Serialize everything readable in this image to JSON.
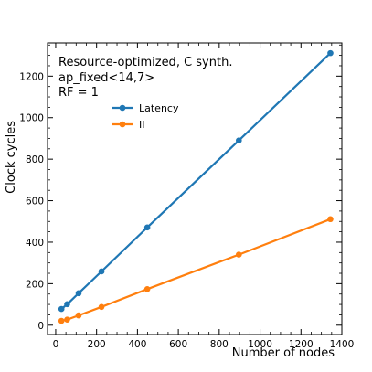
{
  "chart_data": {
    "type": "line",
    "x": [
      28,
      56,
      112,
      224,
      448,
      896,
      1344
    ],
    "series": [
      {
        "name": "Latency",
        "color": "#1f77b4",
        "values": [
          78,
          101,
          154,
          259,
          471,
          890,
          1311
        ]
      },
      {
        "name": "II",
        "color": "#ff7f0e",
        "values": [
          21,
          27,
          47,
          88,
          174,
          340,
          511
        ]
      }
    ],
    "xlabel": "Number of nodes",
    "ylabel": "Clock cycles",
    "xlim": [
      -40,
      1400
    ],
    "ylim": [
      -45,
      1360
    ],
    "xticks": [
      0,
      200,
      400,
      600,
      800,
      1000,
      1200,
      1400
    ],
    "yticks": [
      0,
      200,
      400,
      600,
      800,
      1000,
      1200
    ],
    "annotations": [
      "Resource-optimized, C synth.",
      "ap_fixed<14,7>",
      "RF = 1"
    ],
    "legend_position": "upper-left, inside",
    "grid": false
  }
}
